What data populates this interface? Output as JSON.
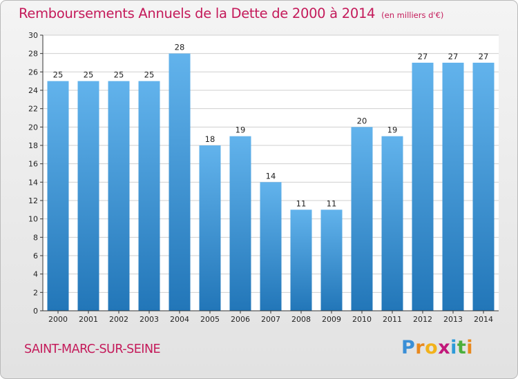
{
  "header": {
    "title": "Remboursements Annuels de la Dette de 2000 à 2014",
    "subtitle": "(en milliers d'€)"
  },
  "footer": {
    "city": "SAINT-MARC-SUR-SEINE",
    "logo": {
      "letters": [
        "P",
        "r",
        "o",
        "x",
        "i",
        "t",
        "i"
      ],
      "colors": [
        "#3a8fd6",
        "#e8891e",
        "#f2b21b",
        "#c2187a",
        "#2d9ad8",
        "#4caf3c",
        "#e8891e"
      ]
    }
  },
  "colors": {
    "accent": "#c41a5a",
    "bar_top": "#62b3ec",
    "bar_bottom": "#2276b8",
    "grid": "#cfcfcf"
  },
  "chart_data": {
    "type": "bar",
    "title": "Remboursements Annuels de la Dette de 2000 à 2014",
    "subtitle": "(en milliers d'€)",
    "categories": [
      "2000",
      "2001",
      "2002",
      "2003",
      "2004",
      "2005",
      "2006",
      "2007",
      "2008",
      "2009",
      "2010",
      "2011",
      "2012",
      "2013",
      "2014"
    ],
    "values": [
      25,
      25,
      25,
      25,
      28,
      18,
      19,
      14,
      11,
      11,
      20,
      19,
      27,
      27,
      27
    ],
    "ylim": [
      0,
      30
    ],
    "yticks": [
      0,
      2,
      4,
      6,
      8,
      10,
      12,
      14,
      16,
      18,
      20,
      22,
      24,
      26,
      28,
      30
    ],
    "grid": true,
    "data_labels": true
  }
}
